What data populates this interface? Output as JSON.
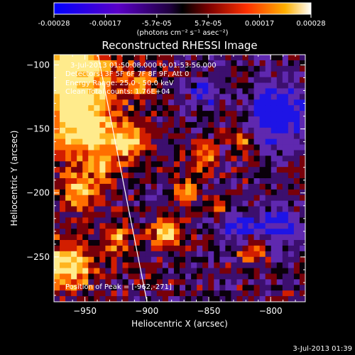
{
  "colorbar": {
    "ticks": [
      "-0.00028",
      "-0.00017",
      "-5.7e-05",
      "5.7e-05",
      "0.00017",
      "0.00028"
    ],
    "units_label": "(photons cm⁻² s⁻¹ asec⁻²)"
  },
  "plot": {
    "title": "Reconstructed RHESSI Image",
    "xlabel": "Heliocentric X (arcsec)",
    "ylabel": "Heliocentric Y (arcsec)",
    "xticks": [
      "-950",
      "-900",
      "-850",
      "-800"
    ],
    "yticks": [
      "-100",
      "-150",
      "-200",
      "-250"
    ],
    "xlim": [
      -975,
      -772
    ],
    "ylim": [
      -285,
      -92
    ]
  },
  "annotations": {
    "time_range": "3-Jul-2013 01:50:08.000 to 01:53:56.000",
    "detectors": "Detectors: 3F 5F 6F 7F 8F 9F, Att 0",
    "energy": "Energy Range: 25.0 - 50.0 keV",
    "algorithm": "Clean    Total counts: 1.76E+04",
    "peak": "Position of Peak = [-962,-271]"
  },
  "timestamp": "3-Jul-2013 01:39"
}
